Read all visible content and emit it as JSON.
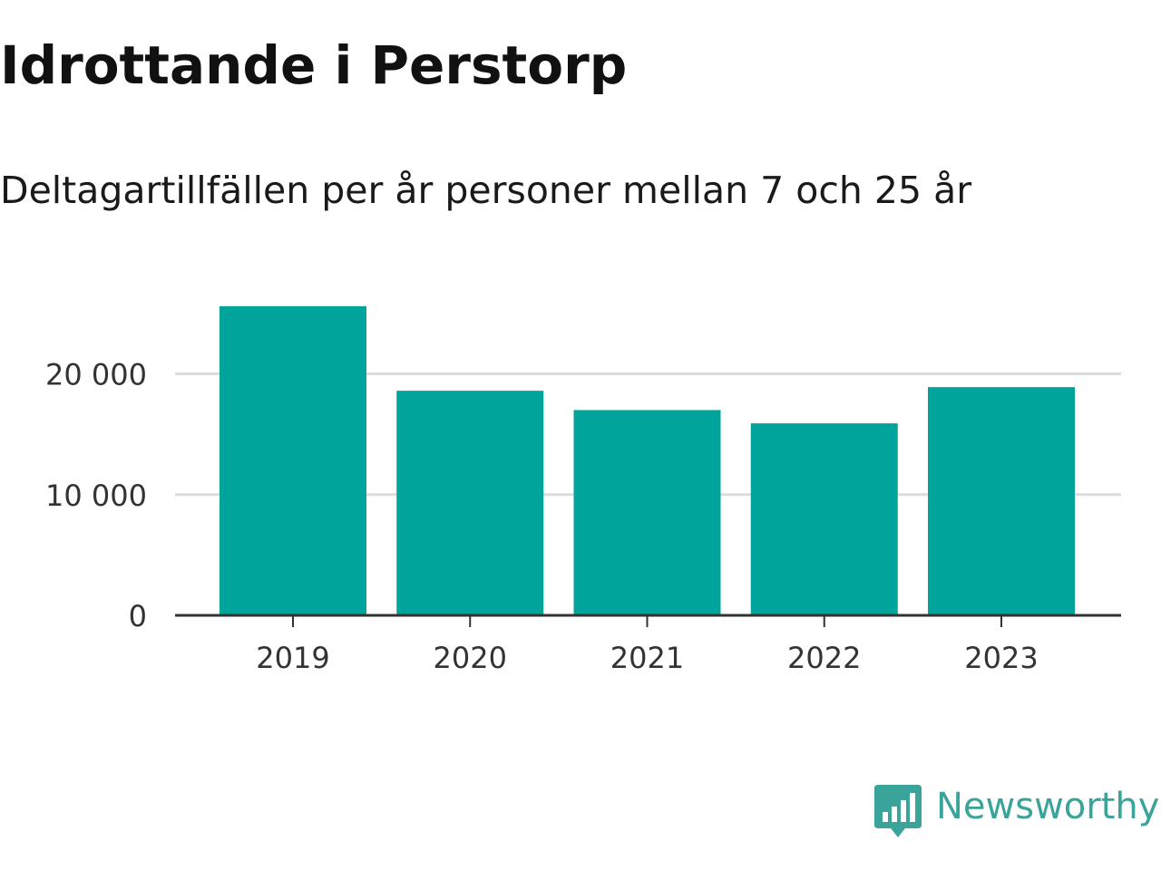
{
  "header": {
    "title": "Idrottande i Perstorp",
    "subtitle": "Deltagartillfällen per år personer mellan 7 och 25 år"
  },
  "branding": {
    "logo_text": "Newsworthy",
    "logo_icon": "bar-chart-speech-bubble-icon",
    "logo_color": "#3aa39a"
  },
  "colors": {
    "bar": "#00a49a",
    "gridline": "#dcdcdc",
    "axis": "#333333"
  },
  "chart_data": {
    "type": "bar",
    "title": "Idrottande i Perstorp",
    "subtitle": "Deltagartillfällen per år personer mellan 7 och 25 år",
    "xlabel": "",
    "ylabel": "",
    "categories": [
      "2019",
      "2020",
      "2021",
      "2022",
      "2023"
    ],
    "values": [
      25600,
      18600,
      17000,
      15900,
      18900
    ],
    "ylim": [
      0,
      28000
    ],
    "y_ticks": [
      0,
      10000,
      20000
    ],
    "y_tick_labels": [
      "0",
      "10 000",
      "20 000"
    ],
    "grid": true,
    "legend": "none"
  }
}
